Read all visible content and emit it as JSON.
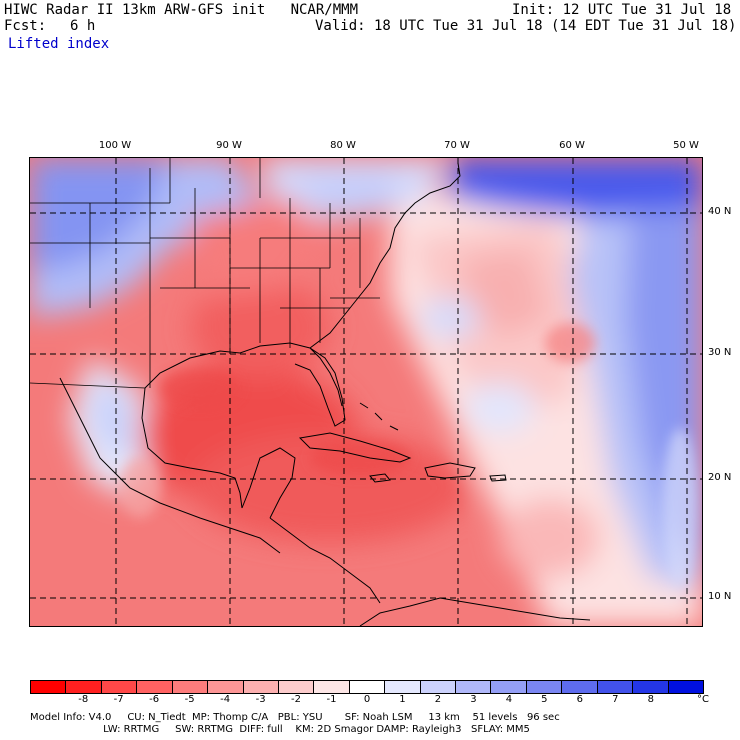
{
  "header": {
    "title": "HIWC Radar II 13km ARW-GFS init   NCAR/MMM",
    "init": "Init: 12 UTC Tue 31 Jul 18",
    "fcst_label": "Fcst:",
    "fcst_value": "6 h",
    "valid": "Valid: 18 UTC Tue 31 Jul 18 (14 EDT Tue 31 Jul 18)",
    "field": "Lifted index"
  },
  "map": {
    "longitudes": [
      "100 W",
      "90 W",
      "80 W",
      "70 W",
      "60 W",
      "50 W"
    ],
    "latitudes": [
      "40 N",
      "30 N",
      "20 N",
      "10 N"
    ],
    "colors": {
      "land_border": "#000000",
      "gridline": "#000000",
      "deep_red": "#ee4040",
      "mid_red": "#f47070",
      "light_red": "#faa0a0",
      "pale_red": "#fcd0d0",
      "white": "#ffffff",
      "pale_blue": "#d0d8fc",
      "light_blue": "#a8b4f8",
      "mid_blue": "#7c8cf2",
      "deep_blue": "#3040e8"
    }
  },
  "colorbar": {
    "labels": [
      "-8",
      "-7",
      "-6",
      "-5",
      "-4",
      "-3",
      "-2",
      "-1",
      "0",
      "1",
      "2",
      "3",
      "4",
      "5",
      "6",
      "7",
      "8"
    ],
    "unit": "°C",
    "colors": [
      "#ff0000",
      "#ff2020",
      "#ff4848",
      "#ff6262",
      "#fd7c7c",
      "#fd9696",
      "#fcb0b0",
      "#fccccc",
      "#fde6e6",
      "#ffffff",
      "#e4e8fe",
      "#ccd2fc",
      "#b0b8fa",
      "#949ff6",
      "#7a86f2",
      "#5e6cee",
      "#4252ea",
      "#2436e6",
      "#0010e0"
    ]
  },
  "model_info": {
    "line1": "Model Info: V4.0     CU: N_Tiedt  MP: Thomp C/A   PBL: YSU       SF: Noah LSM     13 km    51 levels   96 sec",
    "line2": "                       LW: RRTMG     SW: RRTMG  DIFF: full    KM: 2D Smagor DAMP: Rayleigh3   SFLAY: MM5"
  }
}
